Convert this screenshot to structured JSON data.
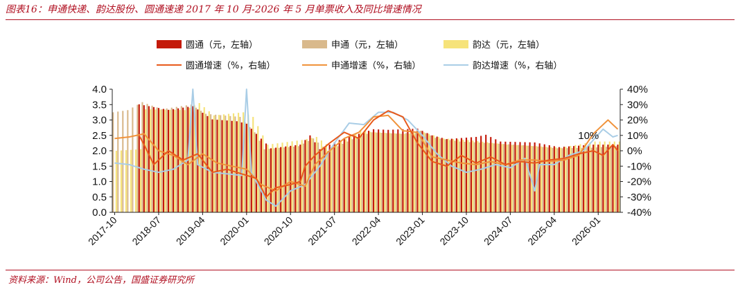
{
  "header": {
    "title": "图表16：申通快递、韵达股份、圆通速递 2017 年 10 月-2026 年 5 月单票收入及同比增速情况"
  },
  "footer": {
    "source": "资料来源：Wind，公司公告，国盛证券研究所"
  },
  "colors": {
    "brand_red": "#b00f20",
    "yto_bar": "#c41a0a",
    "sto_bar": "#d9b98c",
    "yunda_bar": "#f6e37a",
    "yto_growth": "#e8591a",
    "sto_growth": "#f0923a",
    "yunda_growth": "#a9cde6"
  },
  "chart_data": {
    "type": "bar",
    "title": "",
    "x_start": "2017-10",
    "x_end": "2026-05",
    "xticks": [
      "2017-10",
      "2018-07",
      "2019-04",
      "2020-01",
      "2020-10",
      "2021-07",
      "2022-04",
      "2023-01",
      "2023-10",
      "2024-07",
      "2025-04",
      "2026-01"
    ],
    "ylim_left": [
      0,
      4
    ],
    "yticks_left": [
      "0.0",
      "0.5",
      "1.0",
      "1.5",
      "2.0",
      "2.5",
      "3.0",
      "3.5",
      "4.0"
    ],
    "ylim_right": [
      -40,
      40
    ],
    "yticks_right": [
      "-40%",
      "-30%",
      "-20%",
      "-10%",
      "0%",
      "10%",
      "20%",
      "30%",
      "40%"
    ],
    "legend": [
      {
        "name": "圆通（元，左轴）",
        "kind": "bar",
        "color": "#c41a0a"
      },
      {
        "name": "申通（元，左轴）",
        "kind": "bar",
        "color": "#d9b98c"
      },
      {
        "name": "韵达（元，左轴）",
        "kind": "bar",
        "color": "#f6e37a"
      },
      {
        "name": "圆通增速（%，右轴）",
        "kind": "line",
        "color": "#e8591a"
      },
      {
        "name": "申通增速（%，右轴）",
        "kind": "line",
        "color": "#f0923a"
      },
      {
        "name": "韵达增速（%，右轴）",
        "kind": "line",
        "color": "#a9cde6"
      }
    ],
    "annotations": [
      {
        "text": "10%",
        "x": "2025-12"
      }
    ],
    "series": [
      {
        "name": "圆通（元，左轴）",
        "axis": "left",
        "anchors": [
          [
            "2018-03",
            3.51
          ],
          [
            "2018-09",
            3.33
          ],
          [
            "2019-02",
            3.45
          ],
          [
            "2019-06",
            3.02
          ],
          [
            "2019-11",
            2.96
          ],
          [
            "2020-01",
            2.88
          ],
          [
            "2020-03",
            2.55
          ],
          [
            "2020-06",
            2.08
          ],
          [
            "2020-12",
            2.2
          ],
          [
            "2021-02",
            2.5
          ],
          [
            "2021-04",
            2.05
          ],
          [
            "2021-08",
            2.35
          ],
          [
            "2021-12",
            2.55
          ],
          [
            "2022-03",
            2.7
          ],
          [
            "2022-06",
            2.68
          ],
          [
            "2022-12",
            2.72
          ],
          [
            "2023-03",
            2.5
          ],
          [
            "2023-06",
            2.38
          ],
          [
            "2023-12",
            2.45
          ],
          [
            "2024-02",
            2.52
          ],
          [
            "2024-05",
            2.3
          ],
          [
            "2024-12",
            2.27
          ],
          [
            "2025-05",
            2.12
          ],
          [
            "2025-12",
            2.2
          ],
          [
            "2026-05",
            2.2
          ]
        ]
      },
      {
        "name": "申通（元，左轴）",
        "axis": "left",
        "anchors": [
          [
            "2017-10",
            3.25
          ],
          [
            "2018-01",
            3.32
          ],
          [
            "2018-04",
            3.58
          ],
          [
            "2018-08",
            3.35
          ],
          [
            "2019-02",
            3.5
          ],
          [
            "2019-05",
            3.2
          ],
          [
            "2019-12",
            3.1
          ],
          [
            "2020-03",
            2.6
          ],
          [
            "2020-05",
            2.05
          ],
          [
            "2020-12",
            2.15
          ],
          [
            "2021-03",
            2.4
          ],
          [
            "2021-06",
            2.0
          ],
          [
            "2021-12",
            2.45
          ],
          [
            "2022-03",
            2.6
          ],
          [
            "2022-09",
            2.55
          ],
          [
            "2023-01",
            2.65
          ],
          [
            "2023-04",
            2.42
          ],
          [
            "2023-09",
            2.3
          ],
          [
            "2024-03",
            2.25
          ],
          [
            "2024-10",
            2.18
          ],
          [
            "2025-05",
            2.08
          ],
          [
            "2025-12",
            2.1
          ],
          [
            "2026-05",
            2.15
          ]
        ]
      },
      {
        "name": "韵达（元，左轴）",
        "axis": "left",
        "anchors": [
          [
            "2017-10",
            2.0
          ],
          [
            "2018-03",
            2.05
          ],
          [
            "2018-04",
            3.35
          ],
          [
            "2018-12",
            3.32
          ],
          [
            "2019-03",
            3.55
          ],
          [
            "2019-06",
            3.15
          ],
          [
            "2019-12",
            3.25
          ],
          [
            "2020-02",
            3.1
          ],
          [
            "2020-05",
            2.2
          ],
          [
            "2020-12",
            2.35
          ],
          [
            "2021-03",
            2.45
          ],
          [
            "2021-06",
            2.1
          ],
          [
            "2021-12",
            2.65
          ],
          [
            "2022-03",
            2.6
          ],
          [
            "2022-09",
            2.55
          ],
          [
            "2023-01",
            2.6
          ],
          [
            "2023-05",
            2.4
          ],
          [
            "2023-10",
            2.35
          ],
          [
            "2024-06",
            2.2
          ],
          [
            "2024-12",
            2.15
          ],
          [
            "2025-05",
            2.1
          ],
          [
            "2025-12",
            2.3
          ],
          [
            "2026-05",
            2.3
          ]
        ]
      },
      {
        "name": "圆通增速（%，右轴）",
        "axis": "right",
        "anchors": [
          [
            "2018-03",
            10
          ],
          [
            "2018-04",
            4
          ],
          [
            "2018-06",
            -9
          ],
          [
            "2018-09",
            0
          ],
          [
            "2018-12",
            -6
          ],
          [
            "2019-03",
            -2
          ],
          [
            "2019-06",
            -14
          ],
          [
            "2019-09",
            -12
          ],
          [
            "2019-12",
            -15
          ],
          [
            "2020-03",
            -18
          ],
          [
            "2020-05",
            -30
          ],
          [
            "2020-07",
            -24
          ],
          [
            "2020-10",
            -22
          ],
          [
            "2020-12",
            -20
          ],
          [
            "2021-01",
            -10
          ],
          [
            "2021-03",
            -3
          ],
          [
            "2021-06",
            5
          ],
          [
            "2021-09",
            12
          ],
          [
            "2021-12",
            8
          ],
          [
            "2022-03",
            20
          ],
          [
            "2022-06",
            26
          ],
          [
            "2022-09",
            22
          ],
          [
            "2022-12",
            5
          ],
          [
            "2023-03",
            -7
          ],
          [
            "2023-06",
            -10
          ],
          [
            "2023-09",
            -3
          ],
          [
            "2023-12",
            -8
          ],
          [
            "2024-03",
            -4
          ],
          [
            "2024-06",
            -9
          ],
          [
            "2024-09",
            -7
          ],
          [
            "2024-12",
            -8
          ],
          [
            "2025-03",
            -6
          ],
          [
            "2025-06",
            -5
          ],
          [
            "2025-09",
            -2
          ],
          [
            "2025-12",
            0
          ],
          [
            "2026-02",
            -3
          ],
          [
            "2026-04",
            4
          ],
          [
            "2026-05",
            0
          ]
        ]
      },
      {
        "name": "申通增速（%，右轴）",
        "axis": "right",
        "anchors": [
          [
            "2017-10",
            8
          ],
          [
            "2018-01",
            9
          ],
          [
            "2018-04",
            11
          ],
          [
            "2018-07",
            0
          ],
          [
            "2018-10",
            -3
          ],
          [
            "2019-01",
            -9
          ],
          [
            "2019-04",
            -2
          ],
          [
            "2019-07",
            -8
          ],
          [
            "2019-10",
            -10
          ],
          [
            "2020-01",
            -12
          ],
          [
            "2020-04",
            -22
          ],
          [
            "2020-07",
            -26
          ],
          [
            "2020-10",
            -20
          ],
          [
            "2021-01",
            -23
          ],
          [
            "2021-03",
            -9
          ],
          [
            "2021-06",
            0
          ],
          [
            "2021-09",
            8
          ],
          [
            "2021-12",
            12
          ],
          [
            "2022-03",
            22
          ],
          [
            "2022-06",
            23
          ],
          [
            "2022-09",
            13
          ],
          [
            "2022-12",
            12
          ],
          [
            "2023-03",
            -4
          ],
          [
            "2023-06",
            -6
          ],
          [
            "2023-09",
            -8
          ],
          [
            "2023-12",
            -9
          ],
          [
            "2024-03",
            -7
          ],
          [
            "2024-06",
            -9
          ],
          [
            "2024-09",
            -6
          ],
          [
            "2024-12",
            -6
          ],
          [
            "2025-03",
            -7
          ],
          [
            "2025-06",
            -6
          ],
          [
            "2025-09",
            -3
          ],
          [
            "2025-12",
            11
          ],
          [
            "2026-02",
            17
          ],
          [
            "2026-03",
            20
          ],
          [
            "2026-05",
            14
          ]
        ]
      },
      {
        "name": "韵达增速（%，右轴）",
        "axis": "right",
        "anchors": [
          [
            "2017-10",
            -8
          ],
          [
            "2018-01",
            -9
          ],
          [
            "2018-04",
            -12
          ],
          [
            "2018-07",
            -14
          ],
          [
            "2018-10",
            -12
          ],
          [
            "2019-01",
            -6
          ],
          [
            "2019-02",
            40
          ],
          [
            "2019-03",
            -9
          ],
          [
            "2019-06",
            -14
          ],
          [
            "2019-09",
            -15
          ],
          [
            "2019-12",
            -16
          ],
          [
            "2020-01",
            40
          ],
          [
            "2020-02",
            -14
          ],
          [
            "2020-05",
            -32
          ],
          [
            "2020-07",
            -36
          ],
          [
            "2020-10",
            -26
          ],
          [
            "2021-01",
            -22
          ],
          [
            "2021-04",
            -10
          ],
          [
            "2021-07",
            5
          ],
          [
            "2021-10",
            18
          ],
          [
            "2022-01",
            17
          ],
          [
            "2022-04",
            25
          ],
          [
            "2022-07",
            25
          ],
          [
            "2022-10",
            20
          ],
          [
            "2023-01",
            10
          ],
          [
            "2023-04",
            -2
          ],
          [
            "2023-07",
            -10
          ],
          [
            "2023-10",
            -14
          ],
          [
            "2024-01",
            -12
          ],
          [
            "2024-04",
            -9
          ],
          [
            "2024-07",
            -11
          ],
          [
            "2024-10",
            -5
          ],
          [
            "2024-12",
            -26
          ],
          [
            "2025-01",
            -9
          ],
          [
            "2025-04",
            -9
          ],
          [
            "2025-07",
            -3
          ],
          [
            "2025-10",
            0
          ],
          [
            "2025-12",
            7
          ],
          [
            "2026-02",
            14
          ],
          [
            "2026-04",
            9
          ],
          [
            "2026-05",
            10
          ]
        ]
      }
    ]
  }
}
